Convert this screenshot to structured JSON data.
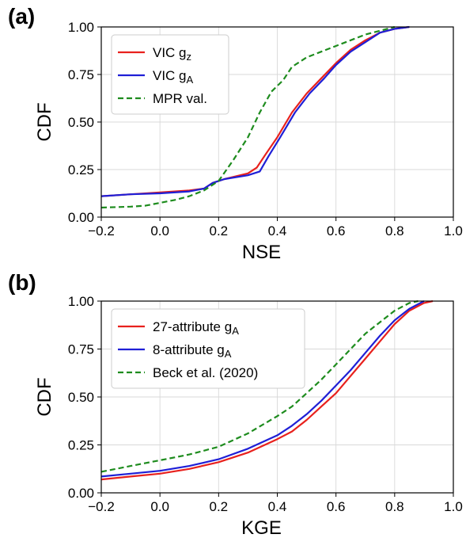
{
  "chart_data": [
    {
      "type": "line",
      "panel_label": "(a)",
      "xlabel": "NSE",
      "ylabel": "CDF",
      "xlim": [
        -0.2,
        1.0
      ],
      "ylim": [
        0.0,
        1.0
      ],
      "xticks": [
        "−0.2",
        "0.0",
        "0.2",
        "0.4",
        "0.6",
        "0.8",
        "1.0"
      ],
      "yticks": [
        "0.00",
        "0.25",
        "0.50",
        "0.75",
        "1.00"
      ],
      "grid": true,
      "legend_position": "upper-left",
      "series": [
        {
          "name": "VIC g",
          "sub": "z",
          "color": "#e8211d",
          "dash": "solid",
          "points": [
            [
              -0.2,
              0.11
            ],
            [
              -0.1,
              0.12
            ],
            [
              0.0,
              0.13
            ],
            [
              0.1,
              0.14
            ],
            [
              0.15,
              0.15
            ],
            [
              0.18,
              0.18
            ],
            [
              0.22,
              0.2
            ],
            [
              0.3,
              0.23
            ],
            [
              0.33,
              0.26
            ],
            [
              0.36,
              0.33
            ],
            [
              0.4,
              0.42
            ],
            [
              0.45,
              0.55
            ],
            [
              0.5,
              0.65
            ],
            [
              0.55,
              0.73
            ],
            [
              0.6,
              0.81
            ],
            [
              0.65,
              0.88
            ],
            [
              0.7,
              0.93
            ],
            [
              0.75,
              0.97
            ],
            [
              0.8,
              0.99
            ],
            [
              0.85,
              1.0
            ]
          ]
        },
        {
          "name": "VIC g",
          "sub": "A",
          "color": "#1f1fd6",
          "dash": "solid",
          "points": [
            [
              -0.2,
              0.11
            ],
            [
              -0.1,
              0.12
            ],
            [
              0.0,
              0.125
            ],
            [
              0.1,
              0.135
            ],
            [
              0.15,
              0.15
            ],
            [
              0.18,
              0.18
            ],
            [
              0.22,
              0.2
            ],
            [
              0.3,
              0.22
            ],
            [
              0.34,
              0.24
            ],
            [
              0.37,
              0.32
            ],
            [
              0.41,
              0.42
            ],
            [
              0.46,
              0.55
            ],
            [
              0.51,
              0.65
            ],
            [
              0.56,
              0.73
            ],
            [
              0.6,
              0.8
            ],
            [
              0.65,
              0.87
            ],
            [
              0.7,
              0.92
            ],
            [
              0.75,
              0.97
            ],
            [
              0.8,
              0.99
            ],
            [
              0.85,
              1.0
            ]
          ]
        },
        {
          "name": "MPR val.",
          "sub": "",
          "color": "#1e8c1e",
          "dash": "dashed",
          "points": [
            [
              -0.2,
              0.05
            ],
            [
              -0.1,
              0.055
            ],
            [
              -0.05,
              0.06
            ],
            [
              0.0,
              0.075
            ],
            [
              0.05,
              0.09
            ],
            [
              0.1,
              0.11
            ],
            [
              0.15,
              0.14
            ],
            [
              0.2,
              0.19
            ],
            [
              0.25,
              0.3
            ],
            [
              0.3,
              0.42
            ],
            [
              0.34,
              0.55
            ],
            [
              0.38,
              0.66
            ],
            [
              0.42,
              0.72
            ],
            [
              0.45,
              0.79
            ],
            [
              0.5,
              0.84
            ],
            [
              0.55,
              0.87
            ],
            [
              0.6,
              0.9
            ],
            [
              0.65,
              0.93
            ],
            [
              0.7,
              0.96
            ],
            [
              0.75,
              0.98
            ],
            [
              0.8,
              1.0
            ]
          ]
        }
      ]
    },
    {
      "type": "line",
      "panel_label": "(b)",
      "xlabel": "KGE",
      "ylabel": "CDF",
      "xlim": [
        -0.2,
        1.0
      ],
      "ylim": [
        0.0,
        1.0
      ],
      "xticks": [
        "−0.2",
        "0.0",
        "0.2",
        "0.4",
        "0.6",
        "0.8",
        "1.0"
      ],
      "yticks": [
        "0.00",
        "0.25",
        "0.50",
        "0.75",
        "1.00"
      ],
      "grid": true,
      "legend_position": "upper-left",
      "series": [
        {
          "name": "27-attribute g",
          "sub": "A",
          "color": "#e8211d",
          "dash": "solid",
          "points": [
            [
              -0.2,
              0.07
            ],
            [
              -0.1,
              0.085
            ],
            [
              0.0,
              0.1
            ],
            [
              0.1,
              0.125
            ],
            [
              0.2,
              0.16
            ],
            [
              0.3,
              0.21
            ],
            [
              0.4,
              0.28
            ],
            [
              0.45,
              0.32
            ],
            [
              0.5,
              0.38
            ],
            [
              0.55,
              0.45
            ],
            [
              0.6,
              0.52
            ],
            [
              0.65,
              0.61
            ],
            [
              0.7,
              0.7
            ],
            [
              0.75,
              0.79
            ],
            [
              0.8,
              0.88
            ],
            [
              0.85,
              0.95
            ],
            [
              0.9,
              0.99
            ],
            [
              0.93,
              1.0
            ]
          ]
        },
        {
          "name": "8-attribute g",
          "sub": "A",
          "color": "#1f1fd6",
          "dash": "solid",
          "points": [
            [
              -0.2,
              0.085
            ],
            [
              -0.1,
              0.1
            ],
            [
              0.0,
              0.115
            ],
            [
              0.1,
              0.14
            ],
            [
              0.2,
              0.175
            ],
            [
              0.3,
              0.23
            ],
            [
              0.4,
              0.3
            ],
            [
              0.45,
              0.35
            ],
            [
              0.5,
              0.41
            ],
            [
              0.55,
              0.48
            ],
            [
              0.6,
              0.56
            ],
            [
              0.65,
              0.64
            ],
            [
              0.7,
              0.73
            ],
            [
              0.75,
              0.82
            ],
            [
              0.8,
              0.9
            ],
            [
              0.85,
              0.96
            ],
            [
              0.9,
              1.0
            ]
          ]
        },
        {
          "name": "Beck et al. (2020)",
          "sub": "",
          "color": "#1e8c1e",
          "dash": "dashed",
          "points": [
            [
              -0.2,
              0.11
            ],
            [
              -0.1,
              0.14
            ],
            [
              0.0,
              0.17
            ],
            [
              0.1,
              0.2
            ],
            [
              0.2,
              0.24
            ],
            [
              0.3,
              0.31
            ],
            [
              0.4,
              0.4
            ],
            [
              0.45,
              0.45
            ],
            [
              0.5,
              0.52
            ],
            [
              0.55,
              0.59
            ],
            [
              0.6,
              0.67
            ],
            [
              0.65,
              0.75
            ],
            [
              0.7,
              0.83
            ],
            [
              0.75,
              0.89
            ],
            [
              0.8,
              0.95
            ],
            [
              0.85,
              0.99
            ],
            [
              0.88,
              1.0
            ]
          ]
        }
      ]
    }
  ]
}
